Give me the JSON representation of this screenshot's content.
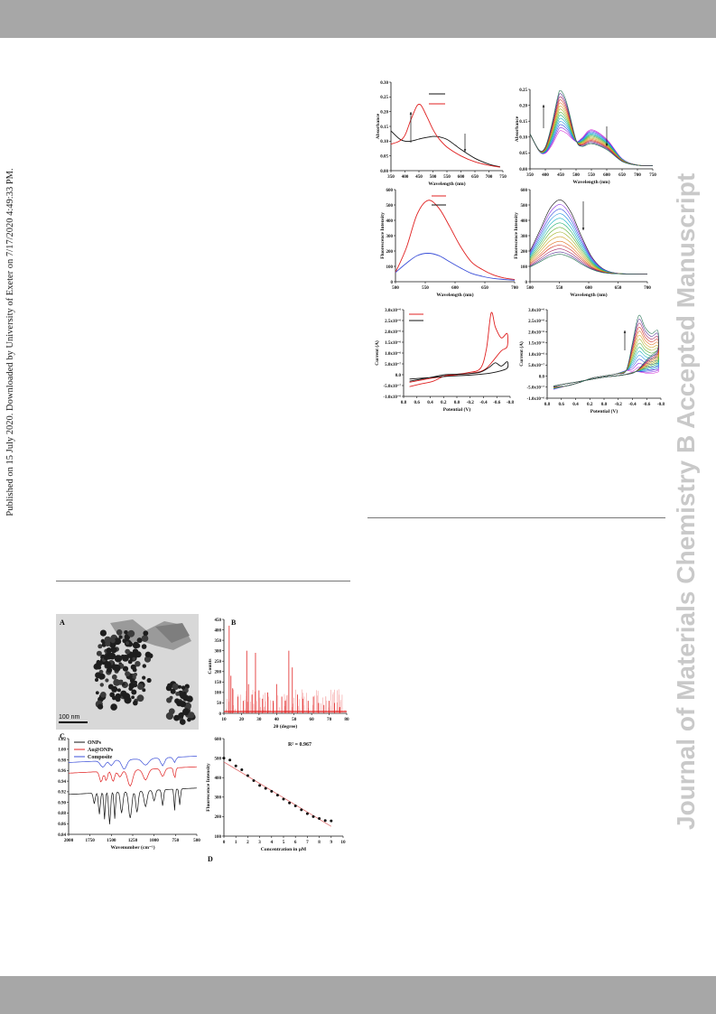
{
  "header": {},
  "sidebar_left": {
    "text": "Published on 15 July 2020. Downloaded by University of Exeter on 7/17/2020 4:49:33 PM."
  },
  "sidebar_right": {
    "text": "Journal of Materials Chemistry B Accepted Manuscript"
  },
  "colors": {
    "bar": "#a7a7a7",
    "watermark": "#c9c9c9",
    "red": "#e02020",
    "black": "#111111",
    "blue": "#3b4fd8"
  },
  "figure_right": {
    "a": {
      "ylabel": "Absorbance",
      "xlabel": "Wavelength (nm)",
      "yticks": [
        "0.00",
        "0.05",
        "0.10",
        "0.15",
        "0.20",
        "0.25",
        "0.30"
      ],
      "xticks": [
        "350",
        "400",
        "450",
        "500",
        "550",
        "600",
        "650",
        "700",
        "750"
      ]
    },
    "b": {
      "ylabel": "Absorbance",
      "xlabel": "Wavelength (nm)",
      "yticks": [
        "0.00",
        "0.05",
        "0.10",
        "0.15",
        "0.20",
        "0.25"
      ],
      "xticks": [
        "350",
        "400",
        "450",
        "500",
        "550",
        "600",
        "650",
        "700",
        "750"
      ]
    },
    "c": {
      "ylabel": "Fluorescence Intensity",
      "xlabel": "Wavelength (nm)",
      "yticks": [
        "0",
        "100",
        "200",
        "300",
        "400",
        "500",
        "600"
      ],
      "xticks": [
        "500",
        "550",
        "600",
        "650",
        "700"
      ]
    },
    "d": {
      "ylabel": "Fluorescence Intensity",
      "xlabel": "Wavelength (nm)",
      "yticks": [
        "0",
        "100",
        "200",
        "300",
        "400",
        "500",
        "600"
      ],
      "xticks": [
        "500",
        "550",
        "600",
        "650",
        "700"
      ]
    },
    "e": {
      "ylabel": "Current (A)",
      "xlabel": "Potential (V)",
      "yticks": [
        "-1.0x10⁻⁶",
        "-5.0x10⁻⁷",
        "0.0",
        "5.0x10⁻⁷",
        "1.0x10⁻⁶",
        "1.5x10⁻⁶",
        "2.0x10⁻⁶",
        "2.5x10⁻⁶",
        "3.0x10⁻⁶"
      ],
      "xticks": [
        "0.8",
        "0.6",
        "0.4",
        "0.2",
        "0.0",
        "-0.2",
        "-0.4",
        "-0.6",
        "-0.8"
      ]
    },
    "f": {
      "ylabel": "Current (A)",
      "xlabel": "Potential (V)",
      "yticks": [
        "-1.0x10⁻⁶",
        "-5.0x10⁻⁷",
        "0.0",
        "5.0x10⁻⁷",
        "1.0x10⁻⁶",
        "1.5x10⁻⁶",
        "2.0x10⁻⁶",
        "2.5x10⁻⁶",
        "3.0x10⁻⁶"
      ],
      "xticks": [
        "0.8",
        "0.6",
        "0.4",
        "0.2",
        "0.0",
        "-0.2",
        "-0.4",
        "-0.6",
        "-0.8"
      ]
    }
  },
  "figure_left": {
    "A": {
      "label": "A",
      "scalebar": "100 nm"
    },
    "B": {
      "label": "B",
      "ylabel": "Counts",
      "xlabel": "2θ (degree)",
      "yticks": [
        "0",
        "50",
        "100",
        "150",
        "200",
        "250",
        "300",
        "350",
        "400",
        "450"
      ],
      "xticks": [
        "10",
        "20",
        "30",
        "40",
        "50",
        "60",
        "70",
        "80"
      ]
    },
    "C": {
      "label": "C",
      "xlabel": "Wavenumber (cm⁻¹)",
      "yticks": [
        "0.84",
        "0.86",
        "0.88",
        "0.90",
        "0.92",
        "0.94",
        "0.96",
        "0.98",
        "1.00",
        "1.02"
      ],
      "xticks": [
        "2000",
        "1750",
        "1500",
        "1250",
        "1000",
        "750",
        "500"
      ],
      "legend": [
        "ONPs",
        "Au@ONPs",
        "Composite"
      ]
    },
    "D": {
      "label": "D",
      "ylabel": "Fluorescence Intensity",
      "xlabel": "Concentration in μM",
      "annotation": "R² = 0.967",
      "yticks": [
        "100",
        "200",
        "300",
        "400",
        "500",
        "600"
      ],
      "xticks": [
        "0",
        "1",
        "2",
        "3",
        "4",
        "5",
        "6",
        "7",
        "8",
        "9",
        "10"
      ]
    }
  },
  "chart_data": [
    {
      "type": "line",
      "panel": "a",
      "xlabel": "Wavelength (nm)",
      "ylabel": "Absorbance",
      "xlim": [
        350,
        750
      ],
      "ylim": [
        0,
        0.3
      ],
      "series": [
        {
          "color": "#111111",
          "x": [
            350,
            380,
            400,
            420,
            450,
            480,
            500,
            520,
            550,
            580,
            600,
            650,
            700,
            740
          ],
          "y": [
            0.135,
            0.108,
            0.1,
            0.1,
            0.107,
            0.113,
            0.116,
            0.115,
            0.106,
            0.086,
            0.072,
            0.042,
            0.022,
            0.013
          ]
        },
        {
          "color": "#e02020",
          "x": [
            350,
            380,
            400,
            420,
            440,
            450,
            460,
            480,
            500,
            520,
            550,
            600,
            650,
            700,
            740
          ],
          "y": [
            0.09,
            0.1,
            0.12,
            0.17,
            0.215,
            0.225,
            0.218,
            0.18,
            0.14,
            0.11,
            0.08,
            0.05,
            0.03,
            0.018,
            0.012
          ]
        }
      ]
    },
    {
      "type": "line",
      "panel": "b",
      "xlabel": "Wavelength (nm)",
      "ylabel": "Absorbance",
      "xlim": [
        350,
        750
      ],
      "ylim": [
        0,
        0.25
      ],
      "curves": 14
    },
    {
      "type": "line",
      "panel": "c",
      "xlabel": "Wavelength (nm)",
      "ylabel": "Fluorescence Intensity",
      "xlim": [
        480,
        700
      ],
      "ylim": [
        0,
        600
      ],
      "series": [
        {
          "color": "#e02020",
          "x": [
            480,
            500,
            520,
            540,
            560,
            580,
            600,
            620,
            640,
            660,
            680,
            700
          ],
          "y": [
            60,
            220,
            440,
            530,
            480,
            360,
            230,
            130,
            80,
            45,
            25,
            15
          ]
        },
        {
          "color": "#3b4fd8",
          "x": [
            480,
            500,
            520,
            540,
            560,
            580,
            600,
            620,
            640,
            660,
            680,
            700
          ],
          "y": [
            60,
            120,
            170,
            185,
            170,
            130,
            90,
            55,
            35,
            22,
            15,
            10
          ]
        }
      ]
    },
    {
      "type": "line",
      "panel": "d",
      "xlabel": "Wavelength (nm)",
      "ylabel": "Fluorescence Intensity",
      "xlim": [
        480,
        710
      ],
      "ylim": [
        0,
        600
      ],
      "peaks": [
        530,
        500,
        470,
        440,
        410,
        380,
        350,
        320,
        290,
        260,
        235,
        210,
        190,
        175
      ]
    },
    {
      "type": "line",
      "panel": "e",
      "xlabel": "Potential (V)",
      "ylabel": "Current (A)"
    },
    {
      "type": "line",
      "panel": "f",
      "xlabel": "Potential (V)",
      "ylabel": "Current (A)"
    },
    {
      "type": "bar",
      "panel": "B",
      "xlabel": "2θ (degree)",
      "ylabel": "Counts",
      "xlim": [
        10,
        80
      ],
      "ylim": [
        0,
        450
      ],
      "x": [
        13,
        14,
        15,
        18,
        21,
        23,
        24,
        26,
        28,
        30,
        32,
        35,
        38,
        40,
        43,
        45,
        47,
        49,
        52,
        55,
        58,
        61,
        64,
        67,
        70,
        73,
        76
      ],
      "y": [
        420,
        180,
        120,
        80,
        60,
        300,
        140,
        90,
        290,
        110,
        70,
        100,
        60,
        140,
        80,
        60,
        300,
        220,
        90,
        70,
        60,
        80,
        50,
        40,
        60,
        50,
        30
      ]
    },
    {
      "type": "line",
      "panel": "C",
      "xlabel": "Wavenumber (cm⁻¹)",
      "xlim": [
        2000,
        500
      ],
      "ylim": [
        0.84,
        1.02
      ],
      "series": [
        {
          "name": "ONPs",
          "color": "#111111"
        },
        {
          "name": "Au@ONPs",
          "color": "#e02020"
        },
        {
          "name": "Composite",
          "color": "#3b4fd8"
        }
      ]
    },
    {
      "type": "scatter",
      "panel": "D",
      "xlabel": "Concentration in μM",
      "ylabel": "Fluorescence Intensity",
      "xlim": [
        0,
        10
      ],
      "ylim": [
        100,
        600
      ],
      "annotation": "R² = 0.967",
      "x": [
        0,
        0.5,
        1,
        1.5,
        2,
        2.5,
        3,
        3.5,
        4,
        4.5,
        5,
        5.5,
        6,
        6.5,
        7,
        7.5,
        8,
        8.5,
        9
      ],
      "y": [
        500,
        490,
        460,
        440,
        410,
        385,
        360,
        345,
        330,
        310,
        290,
        270,
        255,
        235,
        215,
        200,
        190,
        180,
        178
      ]
    }
  ]
}
